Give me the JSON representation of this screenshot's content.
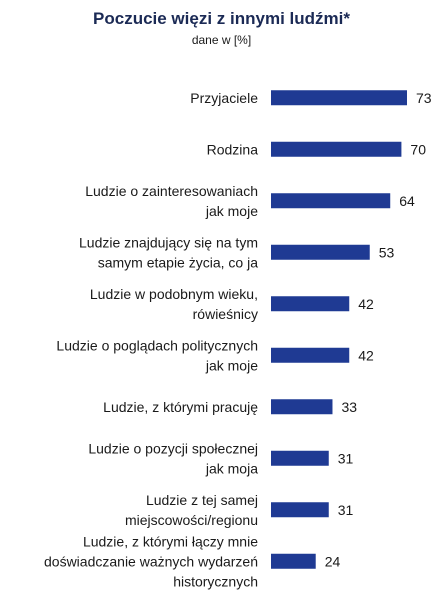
{
  "chart_data": {
    "type": "bar",
    "orientation": "horizontal",
    "title": "Poczucie więzi z innymi ludźmi*",
    "subtitle": "dane w [%]",
    "bar_color": "#1f3a93",
    "xlim": [
      0,
      73
    ],
    "categories": [
      [
        "Przyjaciele"
      ],
      [
        "Rodzina"
      ],
      [
        "Ludzie o zainteresowaniach",
        "jak moje"
      ],
      [
        "Ludzie znajdujący się na tym",
        "samym etapie życia, co ja"
      ],
      [
        "Ludzie w podobnym wieku,",
        "rówieśnicy"
      ],
      [
        "Ludzie o poglądach politycznych",
        "jak moje"
      ],
      [
        "Ludzie, z którymi pracuję"
      ],
      [
        "Ludzie o pozycji społecznej",
        "jak moja"
      ],
      [
        "Ludzie z tej samej",
        "miejscowości/regionu"
      ],
      [
        "Ludzie, z którymi łączy mnie",
        "doświadczanie ważnych wydarzeń",
        "historycznych"
      ]
    ],
    "values": [
      73,
      70,
      64,
      53,
      42,
      42,
      33,
      31,
      31,
      24
    ]
  }
}
